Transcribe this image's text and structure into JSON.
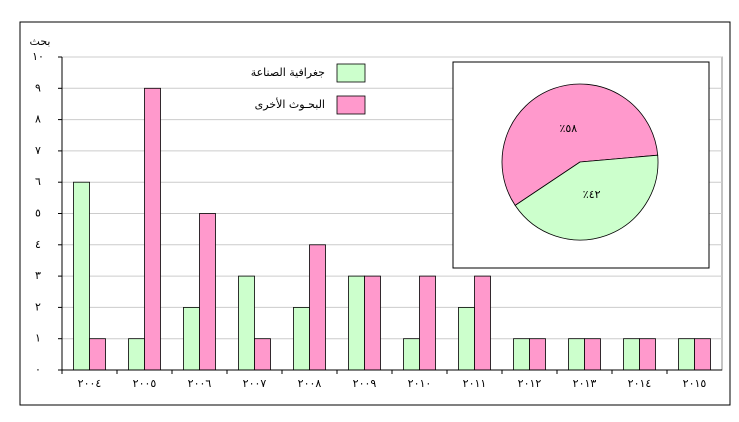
{
  "chart_data": [
    {
      "type": "bar",
      "y_label": "بحث",
      "categories": [
        "٢٠٠٤",
        "٢٠٠٥",
        "٢٠٠٦",
        "٢٠٠٧",
        "٢٠٠٨",
        "٢٠٠٩",
        "٢٠١٠",
        "٢٠١١",
        "٢٠١٢",
        "٢٠١٣",
        "٢٠١٤",
        "٢٠١٥"
      ],
      "series": [
        {
          "name": "جغرافية الصناعة",
          "color": "#ccffcc",
          "values": [
            6,
            1,
            2,
            3,
            2,
            3,
            1,
            2,
            1,
            1,
            1,
            1
          ]
        },
        {
          "name": "البحـوث الأخرى",
          "color": "#ff99cc",
          "values": [
            1,
            9,
            5,
            1,
            4,
            3,
            3,
            3,
            1,
            1,
            1,
            1
          ]
        }
      ],
      "ylim": [
        0,
        10
      ],
      "yticks": [
        {
          "value": 0,
          "label": "٠"
        },
        {
          "value": 1,
          "label": "١"
        },
        {
          "value": 2,
          "label": "٢"
        },
        {
          "value": 3,
          "label": "٣"
        },
        {
          "value": 4,
          "label": "٤"
        },
        {
          "value": 5,
          "label": "٥"
        },
        {
          "value": 6,
          "label": "٦"
        },
        {
          "value": 7,
          "label": "٧"
        },
        {
          "value": 8,
          "label": "٨"
        },
        {
          "value": 9,
          "label": "٩"
        },
        {
          "value": 10,
          "label": "١٠"
        }
      ],
      "grid": true
    },
    {
      "type": "pie",
      "categories": [
        "البحـوث الأخرى",
        "جغرافية الصناعة"
      ],
      "values": [
        58,
        42
      ],
      "value_labels": [
        "٪٥٨",
        "٪٤٢"
      ],
      "colors": [
        "#ff99cc",
        "#ccffcc"
      ]
    }
  ]
}
